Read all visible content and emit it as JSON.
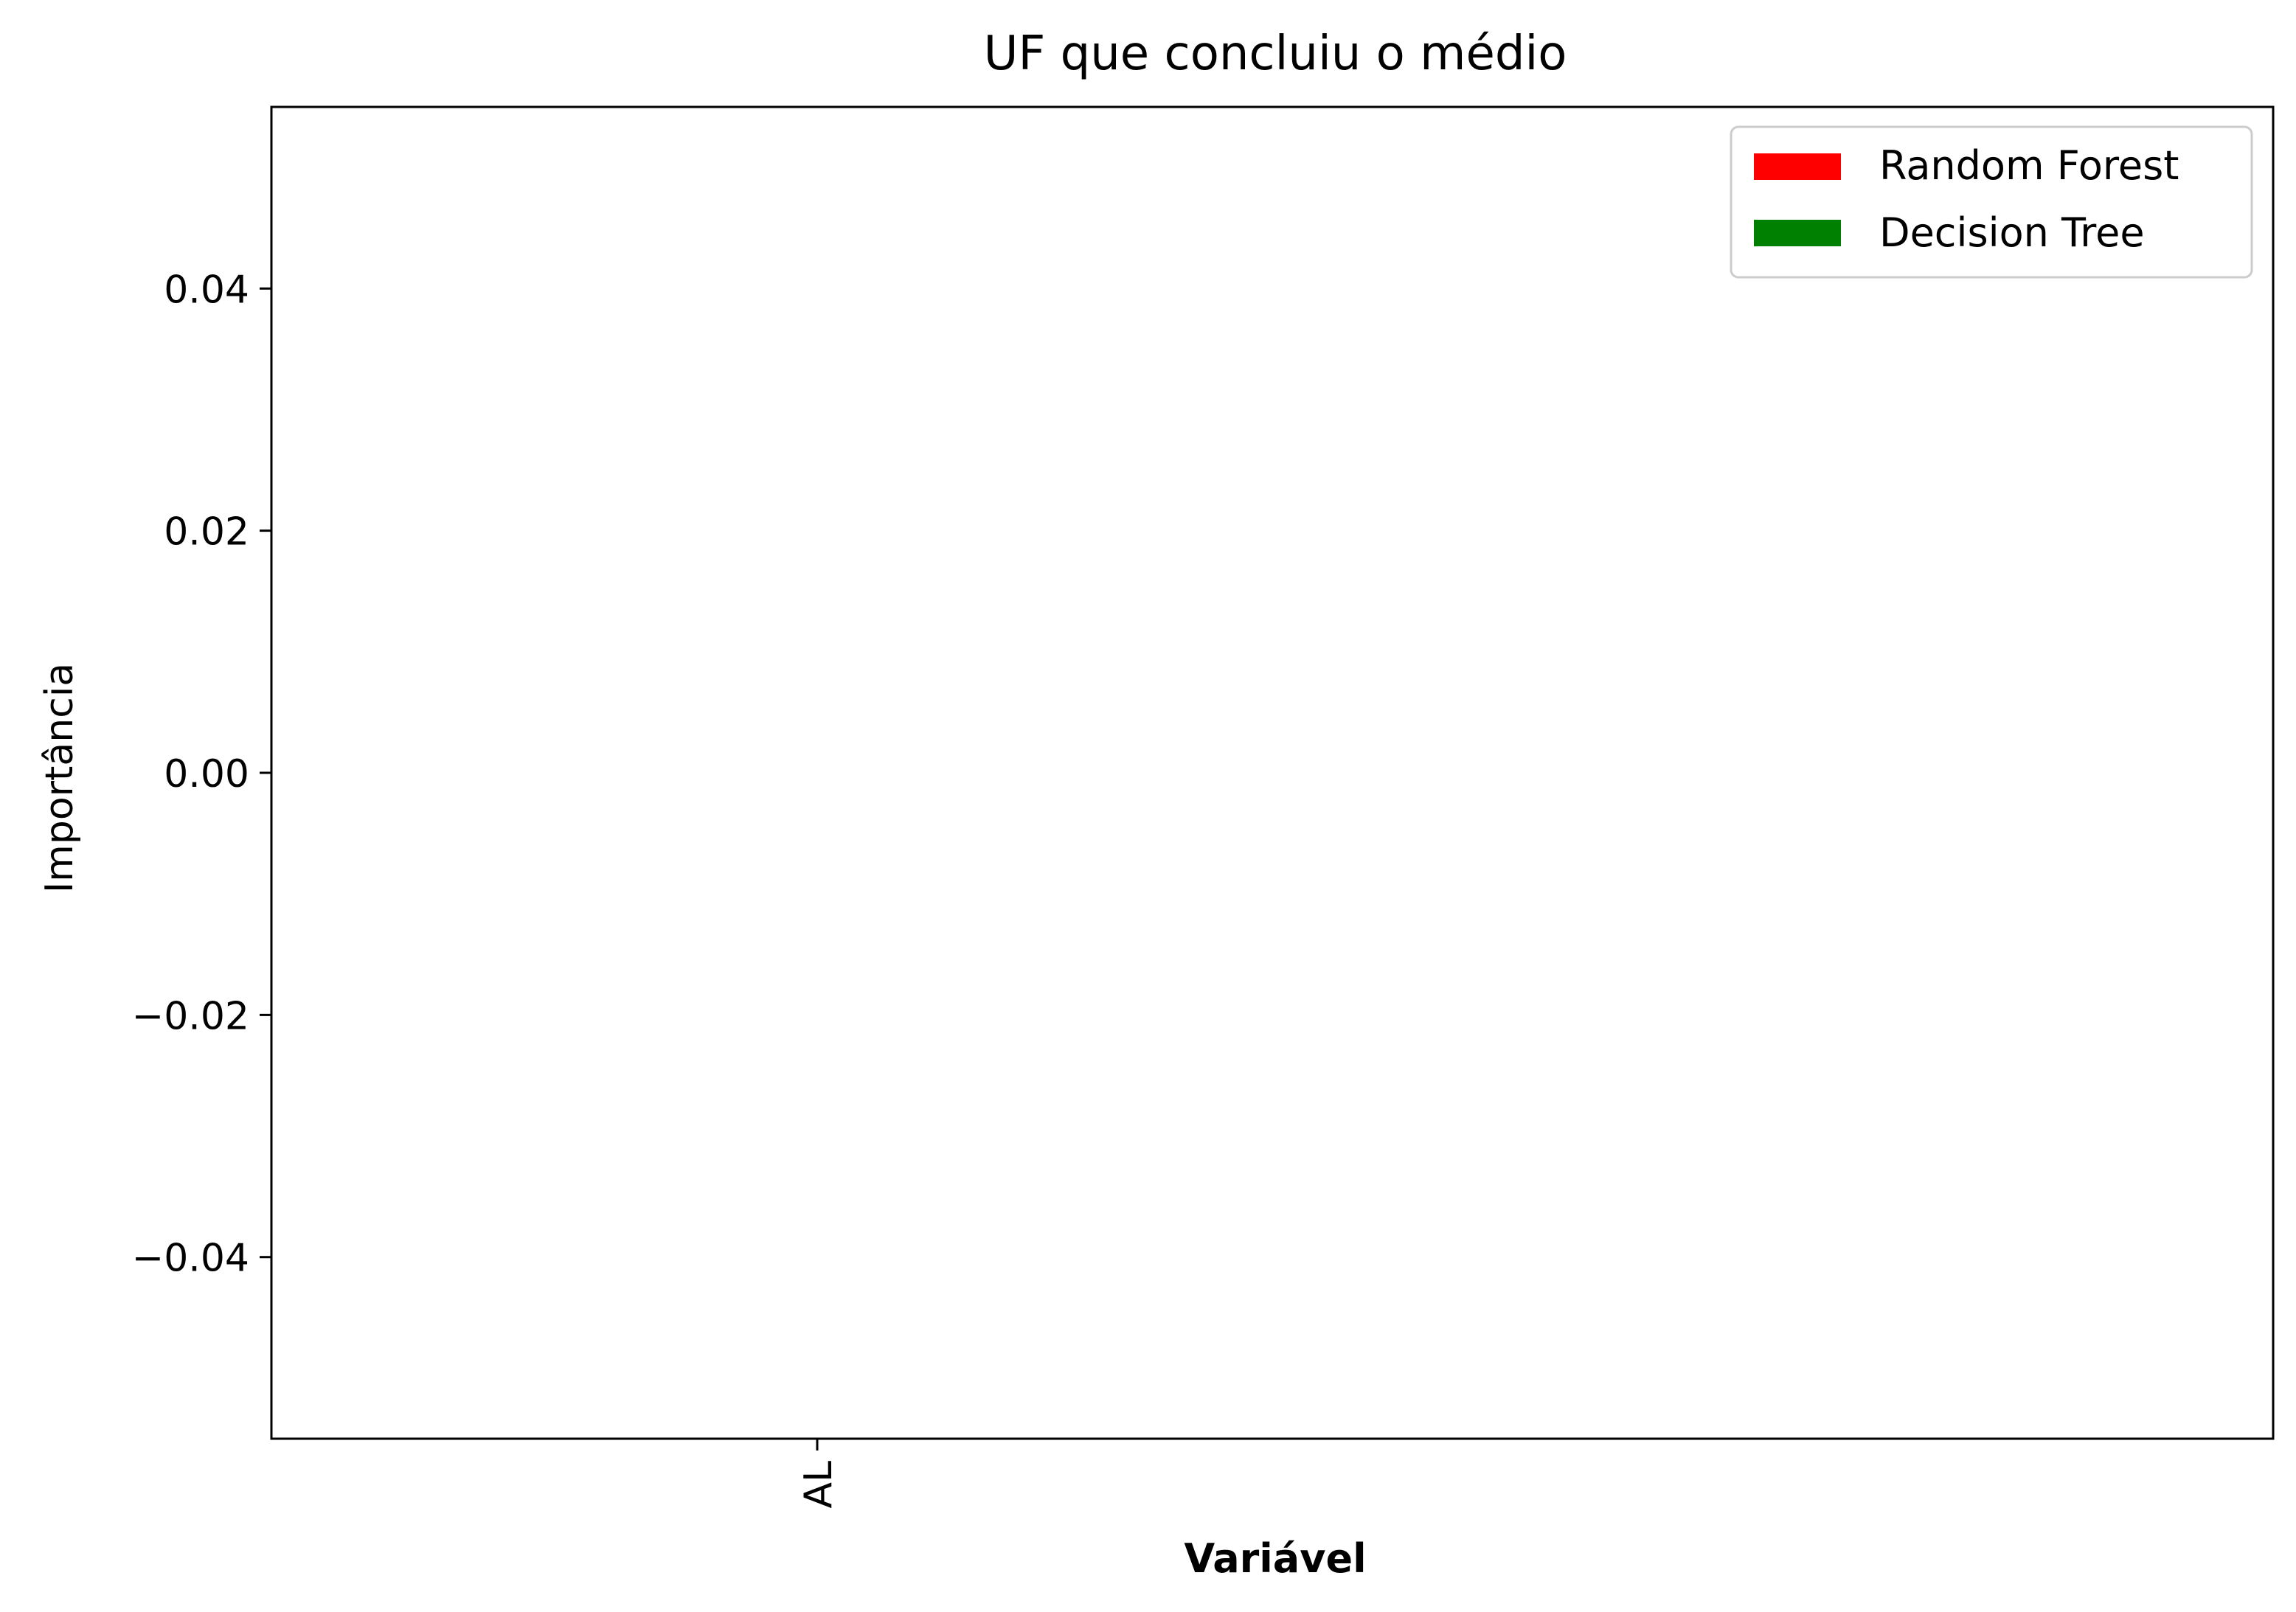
{
  "chart_data": {
    "type": "bar",
    "title": "UF que concluiu o médio",
    "xlabel": "Variável",
    "ylabel": "Importância",
    "categories": [
      "AL"
    ],
    "series": [
      {
        "name": "Random Forest",
        "color": "#ff0000",
        "values": [
          0
        ]
      },
      {
        "name": "Decision Tree",
        "color": "#008000",
        "values": [
          0
        ]
      }
    ],
    "ylim": [
      -0.055,
      0.055
    ],
    "yticks": [
      -0.04,
      -0.02,
      0.0,
      0.02,
      0.04
    ],
    "ytick_labels": [
      "−0.04",
      "−0.02",
      "0.00",
      "0.02",
      "0.04"
    ],
    "grid": false,
    "legend_position": "upper right"
  }
}
